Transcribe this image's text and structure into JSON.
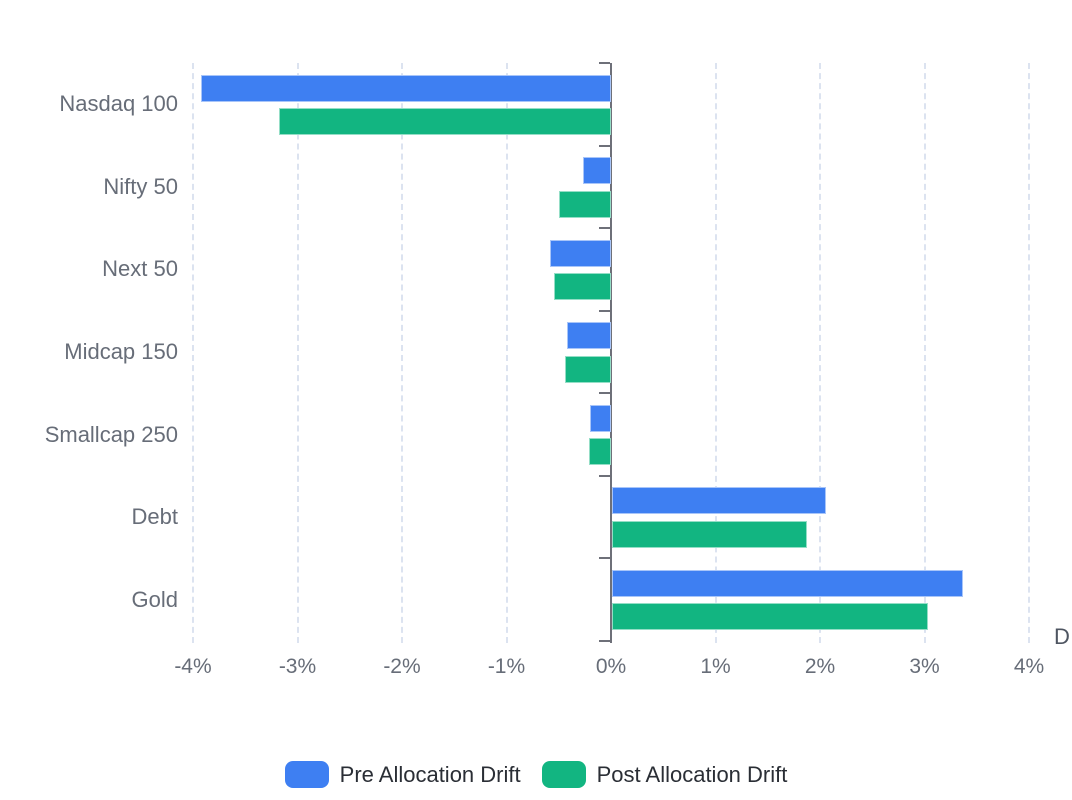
{
  "chart_data": {
    "type": "bar",
    "orientation": "horizontal",
    "title": "",
    "categories": [
      "Nasdaq 100",
      "Nifty 50",
      "Next 50",
      "Midcap 150",
      "Smallcap 250",
      "Debt",
      "Gold"
    ],
    "series": [
      {
        "name": "Pre Allocation Drift",
        "color": "#3E7FF2",
        "values": [
          -3.92,
          -0.27,
          -0.58,
          -0.42,
          -0.2,
          2.05,
          3.36
        ]
      },
      {
        "name": "Post Allocation Drift",
        "color": "#12B581",
        "values": [
          -3.18,
          -0.5,
          -0.55,
          -0.44,
          -0.21,
          1.87,
          3.02
        ]
      }
    ],
    "x_ticks": [
      "-4%",
      "-3%",
      "-2%",
      "-1%",
      "0%",
      "1%",
      "2%",
      "3%",
      "4%"
    ],
    "x_tick_values": [
      -4,
      -3,
      -2,
      -1,
      0,
      1,
      2,
      3,
      4
    ],
    "xlim": [
      -4,
      4
    ],
    "x_axis_title_partial": "D",
    "grid": "dashed-vertical",
    "legend_position": "bottom"
  },
  "legend": {
    "items": [
      {
        "label": "Pre Allocation Drift",
        "color": "#3E7FF2"
      },
      {
        "label": "Post Allocation Drift",
        "color": "#12B581"
      }
    ]
  },
  "colors": {
    "pre_series": "#3E7FF2",
    "post_series": "#12B581",
    "gridline": "#DCE3F0",
    "axis_line": "#6E7079",
    "axis_label": "#676D78",
    "legend_text": "#2A2E35",
    "background": "#FFFFFF"
  }
}
